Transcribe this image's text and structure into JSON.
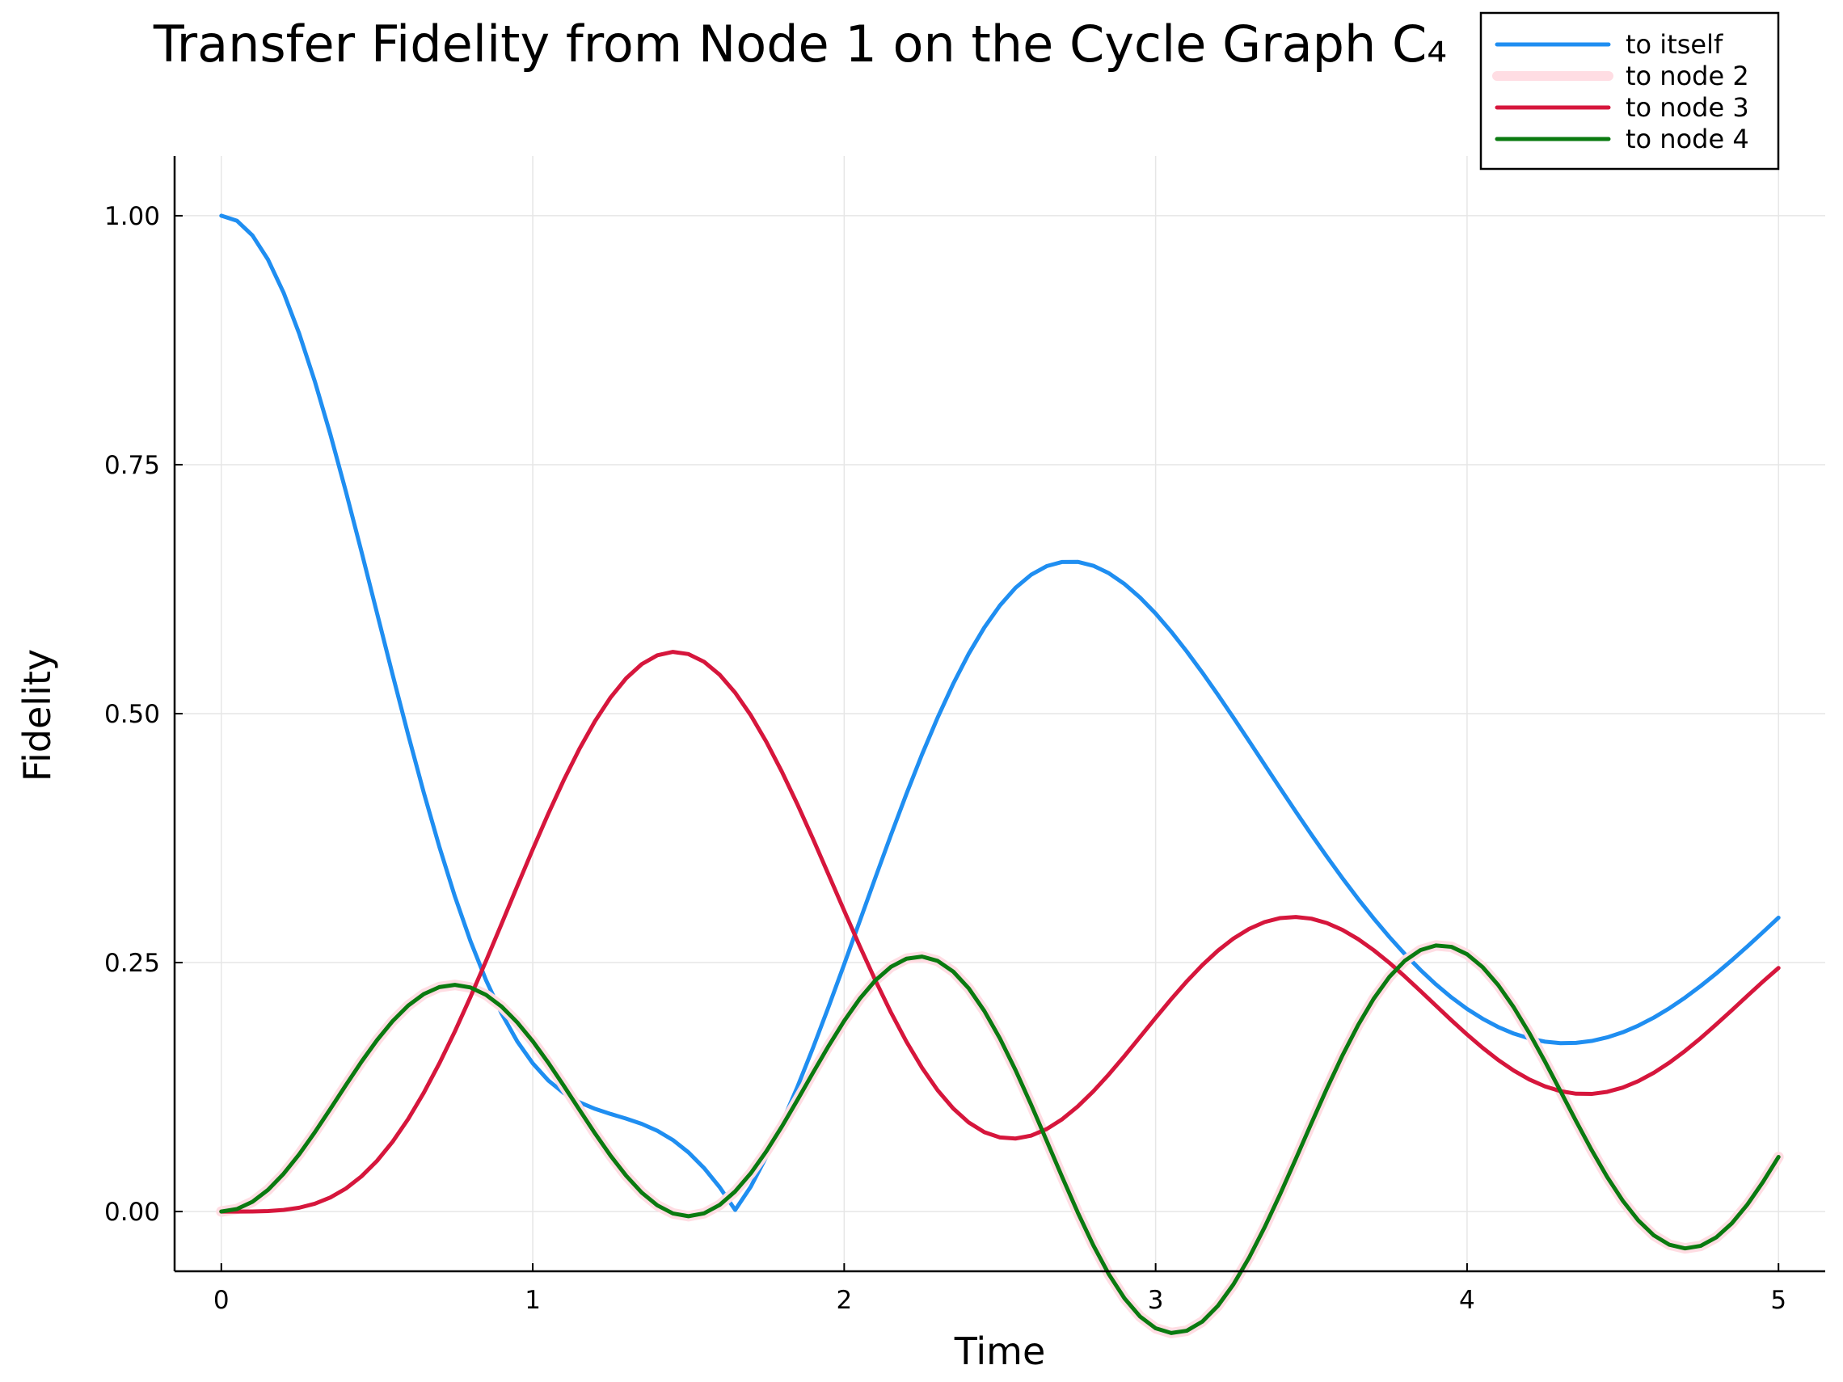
{
  "chart_data": {
    "type": "line",
    "title": "Transfer Fidelity from Node 1 on the Cycle Graph C₄",
    "xlabel": "Time",
    "ylabel": "Fidelity",
    "xlim": [
      -0.15,
      5.15
    ],
    "ylim": [
      -0.06,
      1.06
    ],
    "xticks": [
      0,
      1,
      2,
      3,
      4,
      5
    ],
    "xtick_labels": [
      "0",
      "1",
      "2",
      "3",
      "4",
      "5"
    ],
    "yticks": [
      0,
      0.25,
      0.5,
      0.75,
      1.0
    ],
    "ytick_labels": [
      "0.00",
      "0.25",
      "0.50",
      "0.75",
      "1.00"
    ],
    "grid": true,
    "legend_position": "top-right",
    "x_sample_step": 0.05,
    "x": [
      0.0,
      0.05,
      0.1,
      0.15,
      0.2,
      0.25,
      0.3,
      0.35,
      0.4,
      0.45,
      0.5,
      0.55,
      0.6,
      0.65,
      0.7,
      0.75,
      0.8,
      0.85,
      0.9,
      0.95,
      1.0,
      1.05,
      1.1,
      1.15,
      1.2,
      1.25,
      1.3,
      1.35,
      1.4,
      1.45,
      1.5,
      1.55,
      1.6,
      1.65,
      1.7,
      1.75,
      1.8,
      1.85,
      1.9,
      1.95,
      2.0,
      2.05,
      2.1,
      2.15,
      2.2,
      2.25,
      2.3,
      2.35,
      2.4,
      2.45,
      2.5,
      2.55,
      2.6,
      2.65,
      2.7,
      2.75,
      2.8,
      2.85,
      2.9,
      2.95,
      3.0,
      3.05,
      3.1,
      3.15,
      3.2,
      3.25,
      3.3,
      3.35,
      3.4,
      3.45,
      3.5,
      3.55,
      3.6,
      3.65,
      3.7,
      3.75,
      3.8,
      3.85,
      3.9,
      3.95,
      4.0,
      4.05,
      4.1,
      4.15,
      4.2,
      4.25,
      4.3,
      4.35,
      4.4,
      4.45,
      4.5,
      4.55,
      4.6,
      4.65,
      4.7,
      4.75,
      4.8,
      4.85,
      4.9,
      4.95,
      5.0
    ],
    "series": [
      {
        "name": "to itself",
        "color": "#1f8ef1",
        "line_width": 5,
        "values": [
          1.0,
          0.995,
          0.9802,
          0.9559,
          0.9227,
          0.8817,
          0.8339,
          0.7806,
          0.723,
          0.6627,
          0.6009,
          0.5392,
          0.4788,
          0.4208,
          0.3664,
          0.3164,
          0.2716,
          0.2323,
          0.1988,
          0.171,
          0.1488,
          0.1316,
          0.1189,
          0.1097,
          0.1031,
          0.098,
          0.0933,
          0.088,
          0.0811,
          0.0718,
          0.0594,
          0.0437,
          0.0245,
          0.0016,
          0.0249,
          0.0551,
          0.0887,
          0.1253,
          0.1645,
          0.2057,
          0.2483,
          0.2917,
          0.3352,
          0.378,
          0.4195,
          0.4591,
          0.496,
          0.5299,
          0.5602,
          0.5865,
          0.6086,
          0.6263,
          0.6394,
          0.6481,
          0.6523,
          0.6524,
          0.6485,
          0.641,
          0.6302,
          0.6166,
          0.6005,
          0.5823,
          0.5624,
          0.5412,
          0.5189,
          0.4959,
          0.4724,
          0.4487,
          0.425,
          0.4016,
          0.3786,
          0.3563,
          0.3347,
          0.314,
          0.2944,
          0.2759,
          0.2586,
          0.2427,
          0.2281,
          0.215,
          0.2035,
          0.1936,
          0.1853,
          0.1787,
          0.1738,
          0.1706,
          0.1691,
          0.1694,
          0.1713,
          0.1749,
          0.18,
          0.1867,
          0.1948,
          0.2042,
          0.2148,
          0.2265,
          0.239,
          0.2523,
          0.2662,
          0.2805,
          0.2951
        ]
      },
      {
        "name": "to node 2",
        "color": "#ffdde3",
        "line_width": 13,
        "values": [
          0.0,
          0.0025,
          0.0098,
          0.0218,
          0.0379,
          0.0574,
          0.0795,
          0.103,
          0.127,
          0.1504,
          0.1721,
          0.1912,
          0.2068,
          0.2184,
          0.2254,
          0.2276,
          0.225,
          0.2176,
          0.2058,
          0.19,
          0.171,
          0.1494,
          0.1261,
          0.1021,
          0.0784,
          0.056,
          0.0359,
          0.019,
          0.0062,
          -0.0019,
          -0.0047,
          -0.0018,
          0.0066,
          0.0202,
          0.0384,
          0.0605,
          0.0854,
          0.1121,
          0.1395,
          0.1663,
          0.1914,
          0.2137,
          0.2321,
          0.2457,
          0.2539,
          0.256,
          0.2517,
          0.241,
          0.2241,
          0.2014,
          0.1738,
          0.1421,
          0.1075,
          0.0712,
          0.0346,
          -0.001,
          -0.034,
          -0.0631,
          -0.0872,
          -0.1055,
          -0.1172,
          -0.122,
          -0.1197,
          -0.1105,
          -0.0947,
          -0.0731,
          -0.0464,
          -0.0158,
          0.0176,
          0.0528,
          0.0885,
          0.1236,
          0.1568,
          0.1871,
          0.2136,
          0.2354,
          0.2518,
          0.2625,
          0.2672,
          0.2658,
          0.2584,
          0.2454,
          0.2274,
          0.205,
          0.1791,
          0.1507,
          0.1209,
          0.0908,
          0.0617,
          0.0347,
          0.0108,
          -0.009,
          -0.024,
          -0.0334,
          -0.037,
          -0.0345,
          -0.026,
          -0.0119,
          0.007,
          0.0296,
          0.0548
        ]
      },
      {
        "name": "to node 3",
        "color": "#d6163c",
        "line_width": 5,
        "values": [
          0.0,
          0.0,
          0.0001,
          0.0005,
          0.0016,
          0.0038,
          0.0078,
          0.0141,
          0.0231,
          0.0353,
          0.0509,
          0.0701,
          0.0929,
          0.1192,
          0.1487,
          0.1809,
          0.2155,
          0.2517,
          0.289,
          0.3266,
          0.3637,
          0.3996,
          0.4335,
          0.4647,
          0.4925,
          0.5163,
          0.5355,
          0.5497,
          0.5586,
          0.562,
          0.5598,
          0.5521,
          0.5391,
          0.521,
          0.4984,
          0.4717,
          0.4416,
          0.4088,
          0.3741,
          0.3382,
          0.3021,
          0.2665,
          0.2322,
          0.2,
          0.1705,
          0.1443,
          0.1218,
          0.1035,
          0.0894,
          0.0797,
          0.0744,
          0.0733,
          0.0762,
          0.0828,
          0.0927,
          0.1055,
          0.1207,
          0.1378,
          0.1562,
          0.1753,
          0.1945,
          0.2133,
          0.2311,
          0.2475,
          0.262,
          0.2742,
          0.2838,
          0.2907,
          0.2947,
          0.2958,
          0.2941,
          0.2897,
          0.2828,
          0.2736,
          0.2625,
          0.2499,
          0.2361,
          0.2216,
          0.2068,
          0.192,
          0.1778,
          0.1644,
          0.1522,
          0.1415,
          0.1326,
          0.1257,
          0.1209,
          0.1183,
          0.1181,
          0.1202,
          0.1245,
          0.131,
          0.1394,
          0.1496,
          0.1613,
          0.1741,
          0.1879,
          0.2021,
          0.2166,
          0.2309,
          0.2446
        ]
      },
      {
        "name": "to node 4",
        "color": "#0a7a10",
        "line_width": 5,
        "values": [
          0.0,
          0.0025,
          0.0098,
          0.0218,
          0.0379,
          0.0574,
          0.0795,
          0.103,
          0.127,
          0.1504,
          0.1721,
          0.1912,
          0.2068,
          0.2184,
          0.2254,
          0.2276,
          0.225,
          0.2176,
          0.2058,
          0.19,
          0.171,
          0.1494,
          0.1261,
          0.1021,
          0.0784,
          0.056,
          0.0359,
          0.019,
          0.0062,
          -0.0019,
          -0.0047,
          -0.0018,
          0.0066,
          0.0202,
          0.0384,
          0.0605,
          0.0854,
          0.1121,
          0.1395,
          0.1663,
          0.1914,
          0.2137,
          0.2321,
          0.2457,
          0.2539,
          0.256,
          0.2517,
          0.241,
          0.2241,
          0.2014,
          0.1738,
          0.1421,
          0.1075,
          0.0712,
          0.0346,
          -0.001,
          -0.034,
          -0.0631,
          -0.0872,
          -0.1055,
          -0.1172,
          -0.122,
          -0.1197,
          -0.1105,
          -0.0947,
          -0.0731,
          -0.0464,
          -0.0158,
          0.0176,
          0.0528,
          0.0885,
          0.1236,
          0.1568,
          0.1871,
          0.2136,
          0.2354,
          0.2518,
          0.2625,
          0.2672,
          0.2658,
          0.2584,
          0.2454,
          0.2274,
          0.205,
          0.1791,
          0.1507,
          0.1209,
          0.0908,
          0.0617,
          0.0347,
          0.0108,
          -0.009,
          -0.024,
          -0.0334,
          -0.037,
          -0.0345,
          -0.026,
          -0.0119,
          0.007,
          0.0296,
          0.0548
        ]
      }
    ]
  }
}
